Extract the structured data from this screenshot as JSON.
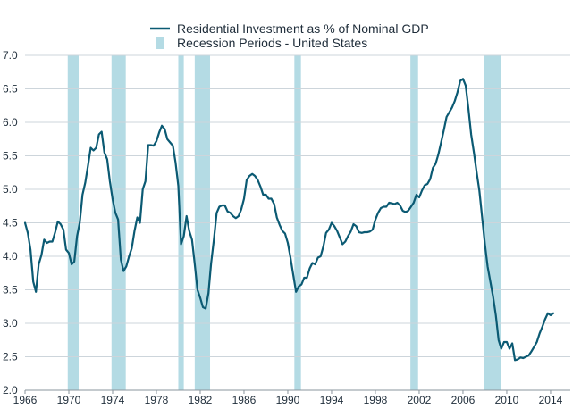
{
  "chart_data": {
    "type": "line",
    "title": "",
    "xlabel": "",
    "ylabel": "",
    "xlim": [
      1966,
      2015.8
    ],
    "ylim": [
      2.0,
      7.0
    ],
    "x_ticks": [
      "1966",
      "1970",
      "1974",
      "1978",
      "1982",
      "1986",
      "1990",
      "1994",
      "1998",
      "2002",
      "2006",
      "2010",
      "2014"
    ],
    "y_ticks": [
      "2.0",
      "2.5",
      "3.0",
      "3.5",
      "4.0",
      "4.5",
      "5.0",
      "5.5",
      "6.0",
      "6.5",
      "7.0"
    ],
    "grid": "horizontal",
    "legend_placement": "top-center",
    "legend": {
      "line_label": "Residential Investment as % of Nominal GDP",
      "band_label": "Recession Periods - United States"
    },
    "colors": {
      "line": "#0b5a73",
      "recession": "#b4dbe4",
      "grid": "#cdd5db",
      "text": "#1f2d3a"
    },
    "recessions": [
      {
        "start": 1969.9,
        "end": 1970.9
      },
      {
        "start": 1973.9,
        "end": 1975.2
      },
      {
        "start": 1980.0,
        "end": 1980.5
      },
      {
        "start": 1981.5,
        "end": 1982.9
      },
      {
        "start": 1990.6,
        "end": 1991.2
      },
      {
        "start": 2001.2,
        "end": 2001.9
      },
      {
        "start": 2007.9,
        "end": 2009.5
      }
    ],
    "series": [
      {
        "name": "Residential Investment as % of Nominal GDP",
        "points": [
          [
            1966.0,
            4.5
          ],
          [
            1966.25,
            4.35
          ],
          [
            1966.5,
            4.1
          ],
          [
            1966.75,
            3.62
          ],
          [
            1967.0,
            3.47
          ],
          [
            1967.25,
            3.88
          ],
          [
            1967.5,
            4.02
          ],
          [
            1967.75,
            4.25
          ],
          [
            1968.0,
            4.2
          ],
          [
            1968.25,
            4.22
          ],
          [
            1968.5,
            4.22
          ],
          [
            1968.75,
            4.36
          ],
          [
            1969.0,
            4.52
          ],
          [
            1969.25,
            4.48
          ],
          [
            1969.5,
            4.4
          ],
          [
            1969.75,
            4.1
          ],
          [
            1970.0,
            4.05
          ],
          [
            1970.25,
            3.88
          ],
          [
            1970.5,
            3.92
          ],
          [
            1970.75,
            4.3
          ],
          [
            1971.0,
            4.5
          ],
          [
            1971.25,
            4.92
          ],
          [
            1971.5,
            5.1
          ],
          [
            1971.75,
            5.35
          ],
          [
            1972.0,
            5.62
          ],
          [
            1972.25,
            5.58
          ],
          [
            1972.5,
            5.62
          ],
          [
            1972.75,
            5.82
          ],
          [
            1973.0,
            5.86
          ],
          [
            1973.25,
            5.55
          ],
          [
            1973.5,
            5.45
          ],
          [
            1973.75,
            5.12
          ],
          [
            1974.0,
            4.85
          ],
          [
            1974.25,
            4.65
          ],
          [
            1974.5,
            4.55
          ],
          [
            1974.75,
            3.95
          ],
          [
            1975.0,
            3.78
          ],
          [
            1975.25,
            3.85
          ],
          [
            1975.5,
            4.0
          ],
          [
            1975.75,
            4.12
          ],
          [
            1976.0,
            4.38
          ],
          [
            1976.25,
            4.58
          ],
          [
            1976.5,
            4.5
          ],
          [
            1976.75,
            5.0
          ],
          [
            1977.0,
            5.12
          ],
          [
            1977.25,
            5.66
          ],
          [
            1977.5,
            5.66
          ],
          [
            1977.75,
            5.65
          ],
          [
            1978.0,
            5.72
          ],
          [
            1978.25,
            5.85
          ],
          [
            1978.5,
            5.95
          ],
          [
            1978.75,
            5.9
          ],
          [
            1979.0,
            5.75
          ],
          [
            1979.25,
            5.7
          ],
          [
            1979.5,
            5.65
          ],
          [
            1979.75,
            5.4
          ],
          [
            1980.0,
            5.05
          ],
          [
            1980.25,
            4.18
          ],
          [
            1980.5,
            4.3
          ],
          [
            1980.75,
            4.6
          ],
          [
            1981.0,
            4.38
          ],
          [
            1981.25,
            4.25
          ],
          [
            1981.5,
            3.88
          ],
          [
            1981.75,
            3.5
          ],
          [
            1982.0,
            3.38
          ],
          [
            1982.25,
            3.24
          ],
          [
            1982.5,
            3.22
          ],
          [
            1982.75,
            3.45
          ],
          [
            1983.0,
            3.9
          ],
          [
            1983.25,
            4.25
          ],
          [
            1983.5,
            4.65
          ],
          [
            1983.75,
            4.74
          ],
          [
            1984.0,
            4.76
          ],
          [
            1984.25,
            4.76
          ],
          [
            1984.5,
            4.67
          ],
          [
            1984.75,
            4.65
          ],
          [
            1985.0,
            4.6
          ],
          [
            1985.25,
            4.57
          ],
          [
            1985.5,
            4.6
          ],
          [
            1985.75,
            4.7
          ],
          [
            1986.0,
            4.86
          ],
          [
            1986.25,
            5.14
          ],
          [
            1986.5,
            5.2
          ],
          [
            1986.75,
            5.23
          ],
          [
            1987.0,
            5.2
          ],
          [
            1987.25,
            5.14
          ],
          [
            1987.5,
            5.04
          ],
          [
            1987.75,
            4.92
          ],
          [
            1988.0,
            4.92
          ],
          [
            1988.25,
            4.86
          ],
          [
            1988.5,
            4.86
          ],
          [
            1988.75,
            4.78
          ],
          [
            1989.0,
            4.58
          ],
          [
            1989.25,
            4.47
          ],
          [
            1989.5,
            4.38
          ],
          [
            1989.75,
            4.34
          ],
          [
            1990.0,
            4.2
          ],
          [
            1990.25,
            3.98
          ],
          [
            1990.5,
            3.72
          ],
          [
            1990.75,
            3.47
          ],
          [
            1991.0,
            3.55
          ],
          [
            1991.25,
            3.58
          ],
          [
            1991.5,
            3.68
          ],
          [
            1991.75,
            3.68
          ],
          [
            1992.0,
            3.82
          ],
          [
            1992.25,
            3.9
          ],
          [
            1992.5,
            3.88
          ],
          [
            1992.75,
            3.98
          ],
          [
            1993.0,
            4.0
          ],
          [
            1993.25,
            4.15
          ],
          [
            1993.5,
            4.35
          ],
          [
            1993.75,
            4.4
          ],
          [
            1994.0,
            4.5
          ],
          [
            1994.25,
            4.45
          ],
          [
            1994.5,
            4.38
          ],
          [
            1994.75,
            4.28
          ],
          [
            1995.0,
            4.18
          ],
          [
            1995.25,
            4.22
          ],
          [
            1995.5,
            4.3
          ],
          [
            1995.75,
            4.37
          ],
          [
            1996.0,
            4.48
          ],
          [
            1996.25,
            4.45
          ],
          [
            1996.5,
            4.36
          ],
          [
            1996.75,
            4.35
          ],
          [
            1997.0,
            4.36
          ],
          [
            1997.25,
            4.36
          ],
          [
            1997.5,
            4.37
          ],
          [
            1997.75,
            4.4
          ],
          [
            1998.0,
            4.55
          ],
          [
            1998.25,
            4.65
          ],
          [
            1998.5,
            4.72
          ],
          [
            1998.75,
            4.74
          ],
          [
            1999.0,
            4.74
          ],
          [
            1999.25,
            4.8
          ],
          [
            1999.5,
            4.79
          ],
          [
            1999.75,
            4.78
          ],
          [
            2000.0,
            4.8
          ],
          [
            2000.25,
            4.76
          ],
          [
            2000.5,
            4.68
          ],
          [
            2000.75,
            4.66
          ],
          [
            2001.0,
            4.68
          ],
          [
            2001.25,
            4.74
          ],
          [
            2001.5,
            4.8
          ],
          [
            2001.75,
            4.92
          ],
          [
            2002.0,
            4.88
          ],
          [
            2002.25,
            4.98
          ],
          [
            2002.5,
            5.06
          ],
          [
            2002.75,
            5.08
          ],
          [
            2003.0,
            5.15
          ],
          [
            2003.25,
            5.32
          ],
          [
            2003.5,
            5.38
          ],
          [
            2003.75,
            5.52
          ],
          [
            2004.0,
            5.7
          ],
          [
            2004.25,
            5.88
          ],
          [
            2004.5,
            6.08
          ],
          [
            2004.75,
            6.15
          ],
          [
            2005.0,
            6.22
          ],
          [
            2005.25,
            6.32
          ],
          [
            2005.5,
            6.45
          ],
          [
            2005.75,
            6.62
          ],
          [
            2006.0,
            6.65
          ],
          [
            2006.25,
            6.55
          ],
          [
            2006.5,
            6.2
          ],
          [
            2006.75,
            5.82
          ],
          [
            2007.0,
            5.55
          ],
          [
            2007.25,
            5.25
          ],
          [
            2007.5,
            4.98
          ],
          [
            2007.75,
            4.58
          ],
          [
            2008.0,
            4.18
          ],
          [
            2008.25,
            3.85
          ],
          [
            2008.5,
            3.62
          ],
          [
            2008.75,
            3.4
          ],
          [
            2009.0,
            3.12
          ],
          [
            2009.25,
            2.75
          ],
          [
            2009.5,
            2.62
          ],
          [
            2009.75,
            2.72
          ],
          [
            2010.0,
            2.72
          ],
          [
            2010.25,
            2.62
          ],
          [
            2010.5,
            2.7
          ],
          [
            2010.75,
            2.45
          ],
          [
            2011.0,
            2.46
          ],
          [
            2011.25,
            2.49
          ],
          [
            2011.5,
            2.48
          ],
          [
            2011.75,
            2.5
          ],
          [
            2012.0,
            2.52
          ],
          [
            2012.25,
            2.58
          ],
          [
            2012.5,
            2.65
          ],
          [
            2012.75,
            2.72
          ],
          [
            2013.0,
            2.85
          ],
          [
            2013.25,
            2.95
          ],
          [
            2013.5,
            3.06
          ],
          [
            2013.75,
            3.15
          ],
          [
            2014.0,
            3.12
          ],
          [
            2014.25,
            3.15
          ]
        ]
      }
    ]
  }
}
